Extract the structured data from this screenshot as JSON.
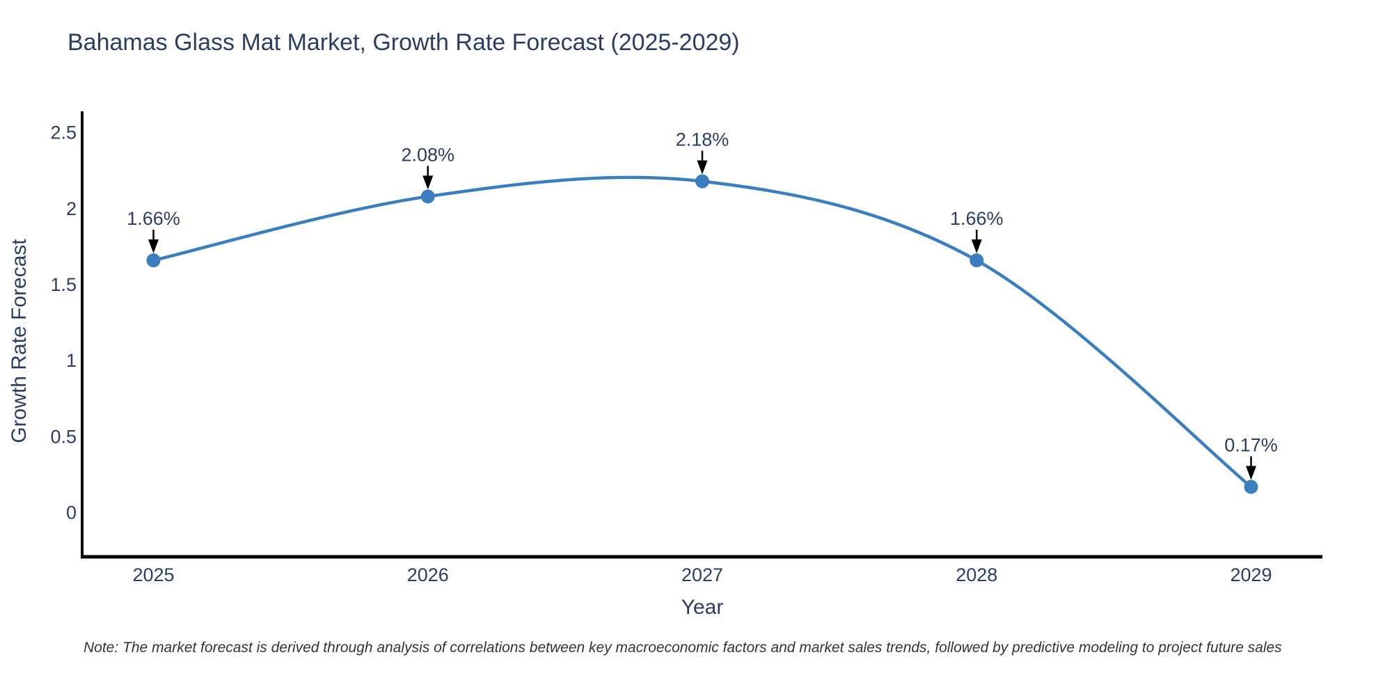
{
  "note": "Note: The market forecast is derived through analysis of correlations between key macroeconomic factors and market sales trends, followed by predictive modeling to project future sales",
  "chart_data": {
    "type": "line",
    "line_shape": "spline",
    "title": "Bahamas Glass Mat Market, Growth Rate Forecast (2025-2029)",
    "xlabel": "Year",
    "ylabel": "Growth Rate Forecast",
    "x": [
      2025,
      2026,
      2027,
      2028,
      2029
    ],
    "values": [
      1.66,
      2.08,
      2.18,
      1.66,
      0.17
    ],
    "point_labels": [
      "1.66%",
      "2.08%",
      "2.18%",
      "1.66%",
      "0.17%"
    ],
    "x_tick_labels": [
      "2025",
      "2026",
      "2027",
      "2028",
      "2029"
    ],
    "y_tick_values": [
      0,
      0.5,
      1,
      1.5,
      2,
      2.5
    ],
    "y_tick_labels": [
      "0",
      "0.5",
      "1",
      "1.5",
      "2",
      "2.5"
    ],
    "xlim": [
      2024.74,
      2029.26
    ],
    "ylim": [
      -0.29,
      2.64
    ],
    "grid": false,
    "legend": "none",
    "colors": {
      "line": "#3a7ebf",
      "marker": "#3a7ebf",
      "axis": "#000000",
      "tick_text": "#2a3f5f",
      "annotation_text": "#2a3f5f",
      "arrow": "#000000",
      "background": "#ffffff"
    }
  }
}
